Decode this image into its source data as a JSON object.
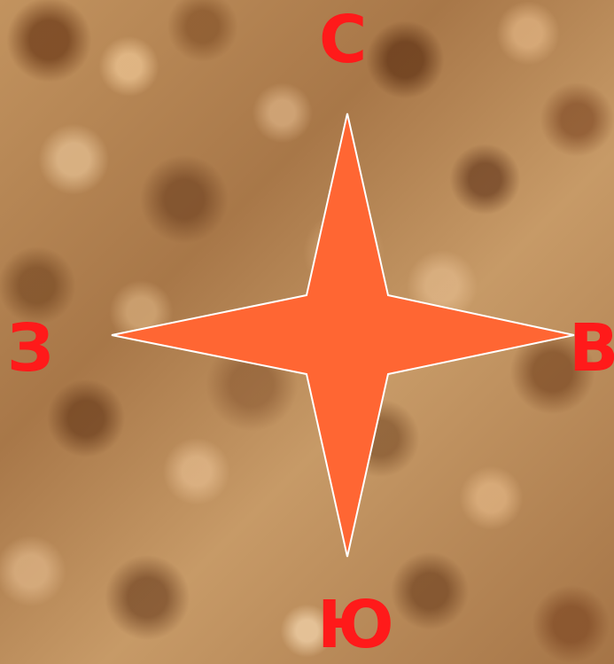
{
  "labels": {
    "north": "С",
    "west": "З",
    "east": "В",
    "south": "Ю"
  },
  "colors": {
    "star_fill": "#ff6633",
    "star_stroke": "#ffffff",
    "label_color": "#ff1a1a",
    "background": "#b98a5a"
  },
  "icons": {
    "compass": "compass-rose-icon"
  }
}
